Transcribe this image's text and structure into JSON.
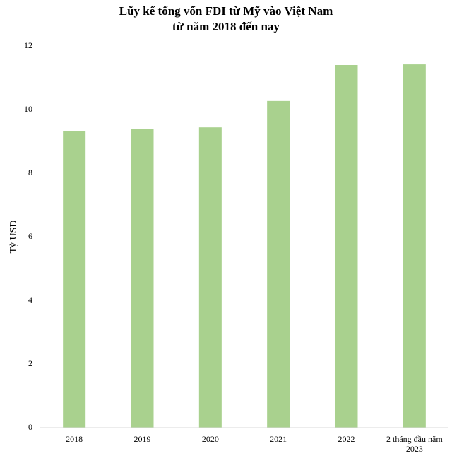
{
  "chart_data": {
    "type": "bar",
    "title": "Lũy kế tổng vốn FDI từ Mỹ vào Việt Nam",
    "subtitle": "từ năm 2018 đến nay",
    "y_label": "Tỷ USD",
    "categories": [
      "2018",
      "2019",
      "2020",
      "2021",
      "2022",
      "2 tháng đầu năm 2023"
    ],
    "values": [
      9.33,
      9.38,
      9.44,
      10.27,
      11.4,
      11.42
    ],
    "color": "#a9d18e",
    "ylim": [
      0,
      12
    ],
    "yticks": [
      0,
      2,
      4,
      6,
      8,
      10,
      12
    ],
    "grid": false
  }
}
